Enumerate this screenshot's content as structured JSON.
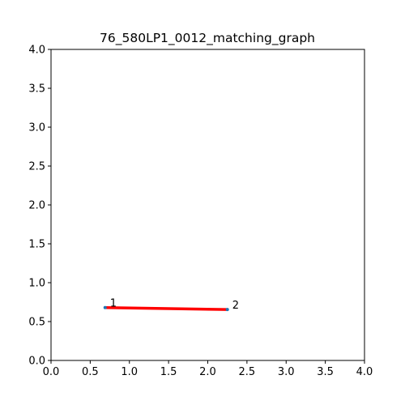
{
  "chart_data": {
    "type": "line",
    "title": "76_580LP1_0012_matching_graph",
    "xlabel": "",
    "ylabel": "",
    "xlim": [
      0.0,
      4.0
    ],
    "ylim": [
      0.0,
      4.0
    ],
    "x_ticks": [
      "0.0",
      "0.5",
      "1.0",
      "1.5",
      "2.0",
      "2.5",
      "3.0",
      "3.5",
      "4.0"
    ],
    "y_ticks": [
      "0.0",
      "0.5",
      "1.0",
      "1.5",
      "2.0",
      "2.5",
      "3.0",
      "3.5",
      "4.0"
    ],
    "grid": false,
    "nodes": [
      {
        "label": "1",
        "x": 0.69,
        "y": 0.68
      },
      {
        "label": "2",
        "x": 2.25,
        "y": 0.655
      }
    ],
    "edges": [
      {
        "from": 0,
        "to": 1,
        "color": "#ff0000"
      }
    ],
    "node_color": "#1f77b4",
    "edge_color": "#ff0000"
  }
}
